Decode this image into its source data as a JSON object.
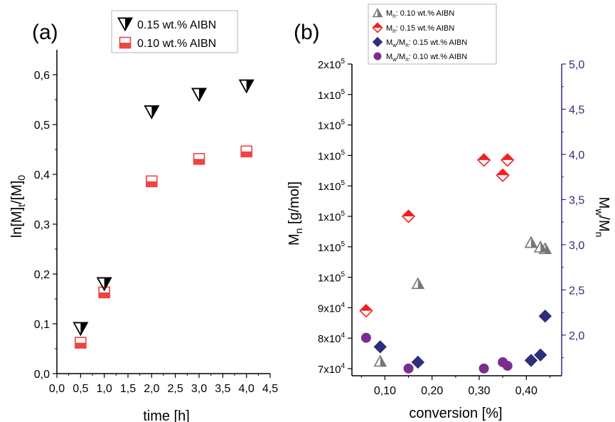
{
  "colors": {
    "aibn_015_panel_a": "#000000",
    "aibn_010_panel_a": "#ee4444",
    "mn_010": "#777777",
    "mn_015": "#ee2222",
    "mwmn_015": "#2e2e7a",
    "mwmn_010": "#7b2d8e",
    "right_axis": "#2e2e7a"
  },
  "panel_labels": {
    "a": "(a)",
    "b": "(b)"
  },
  "chart_data": [
    {
      "type": "scatter",
      "panel": "(a)",
      "xlabel": "time [h]",
      "ylabel": "ln[M]t/[M]0",
      "ylabel_parts": {
        "main": "ln[M]",
        "sub1": "t",
        "mid": "/[M]",
        "sub2": "0"
      },
      "xlim": [
        0.0,
        4.5
      ],
      "ylim": [
        0.0,
        0.65
      ],
      "x_ticks": [
        0.0,
        0.5,
        1.0,
        1.5,
        2.0,
        2.5,
        3.0,
        3.5,
        4.0,
        4.5
      ],
      "x_tick_labels": [
        "0,0",
        "0,5",
        "1,0",
        "1,5",
        "2,0",
        "2,5",
        "3,0",
        "3,5",
        "4,0",
        "4,5"
      ],
      "y_ticks": [
        0.0,
        0.1,
        0.2,
        0.3,
        0.4,
        0.5,
        0.6
      ],
      "y_tick_labels": [
        "0,0",
        "0,1",
        "0,2",
        "0,3",
        "0,4",
        "0,5",
        "0,6"
      ],
      "grid": false,
      "legend_position": "top-right",
      "series": [
        {
          "name": "0.15 wt.% AIBN",
          "marker": "half-filled-down-triangle",
          "x": [
            0.5,
            1.0,
            2.0,
            3.0,
            4.0
          ],
          "y": [
            0.09,
            0.18,
            0.525,
            0.56,
            0.577
          ]
        },
        {
          "name": "0.10 wt.% AIBN",
          "marker": "half-filled-square",
          "x": [
            0.5,
            1.0,
            2.0,
            3.0,
            4.0
          ],
          "y": [
            0.062,
            0.163,
            0.386,
            0.431,
            0.446
          ]
        }
      ]
    },
    {
      "type": "scatter",
      "panel": "(b)",
      "xlabel": "conversion [%]",
      "ylabel_left": "Mn [g/mol]",
      "ylabel_left_parts": {
        "main": "M",
        "sub": "n",
        "rest": " [g/mol]"
      },
      "ylabel_right": "Mw/Mn",
      "ylabel_right_parts": {
        "m1": "M",
        "s1": "w",
        "slash": "/M",
        "s2": "n"
      },
      "xlim": [
        0.03,
        0.475
      ],
      "x_ticks": [
        0.1,
        0.2,
        0.3,
        0.4
      ],
      "x_tick_labels": [
        "0,10",
        "0,20",
        "0,30",
        "0,40"
      ],
      "ylim_left": [
        68000,
        200000
      ],
      "y_ticks_left": [
        70000,
        80000,
        90000,
        100000,
        110000,
        120000,
        130000,
        140000,
        150000,
        160000,
        200000
      ],
      "y_tick_labels_left": [
        {
          "base": "7x10",
          "exp": "4"
        },
        {
          "base": "8x10",
          "exp": "4"
        },
        {
          "base": "9x10",
          "exp": "4"
        },
        {
          "base": "1x10",
          "exp": "5"
        },
        {
          "base": "1x10",
          "exp": "5"
        },
        {
          "base": "1x10",
          "exp": "5"
        },
        {
          "base": "1x10",
          "exp": "5"
        },
        {
          "base": "1x10",
          "exp": "5"
        },
        {
          "base": "1x10",
          "exp": "5"
        },
        {
          "base": "1x10",
          "exp": "5"
        },
        {
          "base": "2x10",
          "exp": "5"
        }
      ],
      "y_tick_positions_left_note": "Left axis is linear from 70000 to 200000 in steps shown by evenly spaced ticks.",
      "ylim_right": [
        1.55,
        5.0
      ],
      "y_ticks_right": [
        2.0,
        2.5,
        3.0,
        3.5,
        4.0,
        4.5,
        5.0
      ],
      "y_tick_labels_right": [
        "2,0",
        "2,5",
        "3,0",
        "3,5",
        "4,0",
        "4,5",
        "5,0"
      ],
      "grid": false,
      "legend_position": "top-left",
      "series": [
        {
          "name_parts": {
            "m": "M",
            "s": "n",
            "t": ": 0.10 wt.% AIBN"
          },
          "axis": "left",
          "marker": "half-filled-up-triangle",
          "x": [
            0.09,
            0.17,
            0.41,
            0.43,
            0.44
          ],
          "y": [
            72500,
            98000,
            111500,
            110000,
            109500
          ]
        },
        {
          "name_parts": {
            "m": "M",
            "s": "n",
            "t": ": 0.15 wt.% AIBN"
          },
          "axis": "left",
          "marker": "half-filled-diamond",
          "x": [
            0.06,
            0.15,
            0.31,
            0.35,
            0.36
          ],
          "y": [
            89000,
            120000,
            138500,
            133500,
            138500
          ]
        },
        {
          "name_parts": {
            "m1": "M",
            "s1": "w",
            "m2": "/M",
            "s2": "n",
            "t": ": 0.15 wt.% AIBN"
          },
          "axis": "right",
          "marker": "filled-diamond",
          "x": [
            0.09,
            0.17,
            0.41,
            0.43,
            0.44
          ],
          "y": [
            1.87,
            1.7,
            1.72,
            1.78,
            2.21
          ]
        },
        {
          "name_parts": {
            "m1": "M",
            "s1": "w",
            "m2": "/M",
            "s2": "n",
            "t": ":  0.10 wt.% AIBN"
          },
          "axis": "right",
          "marker": "filled-circle",
          "x": [
            0.06,
            0.15,
            0.31,
            0.35,
            0.36
          ],
          "y": [
            1.97,
            1.63,
            1.63,
            1.7,
            1.66
          ]
        }
      ]
    }
  ]
}
